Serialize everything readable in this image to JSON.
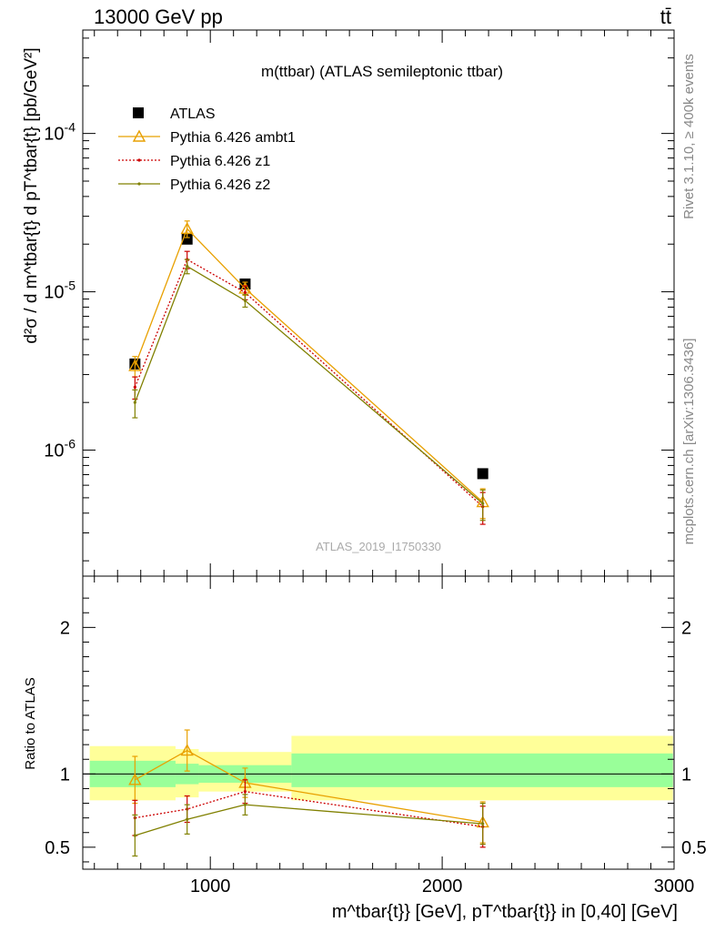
{
  "header": {
    "process": "13000 GeV pp",
    "final_state": "tt̄"
  },
  "side": {
    "rivet": "Rivet 3.1.10, ≥ 400k events",
    "source": "mcplots.cern.ch [arXiv:1306.3436]"
  },
  "chart_data": [
    {
      "type": "line",
      "panel": "main",
      "title": "m(ttbar) (ATLAS semileptonic ttbar)",
      "analysis": "ATLAS_2019_I1750330",
      "ylabel": "d²σ / d m^tbar{t} d pT^tbar{t} [pb/GeV²]",
      "yscale": "log",
      "ylim": [
        1.6e-07,
        0.00045
      ],
      "xlim": [
        450,
        3000
      ],
      "ytick_labels": [
        "10^-6",
        "10^-5",
        "10^-4"
      ],
      "legend_placement": "top-left",
      "series": [
        {
          "name": "ATLAS",
          "marker": "square",
          "color": "#000000",
          "x": [
            675,
            900,
            1150,
            2175
          ],
          "values": [
            3.5e-06,
            2.15e-05,
            1.12e-05,
            7.1e-07
          ],
          "err": [
            0,
            0,
            0,
            0
          ]
        },
        {
          "name": "Pythia 6.426 ambt1",
          "marker": "triangle",
          "color": "#e8a000",
          "x": [
            675,
            900,
            1150,
            2175
          ],
          "values": [
            3.4e-06,
            2.5e-05,
            1.05e-05,
            4.7e-07
          ],
          "err": [
            5e-07,
            3e-06,
            1e-06,
            1e-07
          ]
        },
        {
          "name": "Pythia 6.426 z1",
          "marker": "dot",
          "dash": "dotted",
          "color": "#cc0000",
          "x": [
            675,
            900,
            1150,
            2175
          ],
          "values": [
            2.5e-06,
            1.6e-05,
            9.9e-06,
            4.4e-07
          ],
          "err": [
            4e-07,
            2e-06,
            1e-06,
            1e-07
          ]
        },
        {
          "name": "Pythia 6.426 z2",
          "marker": "dot",
          "color": "#808000",
          "x": [
            675,
            900,
            1150,
            2175
          ],
          "values": [
            2e-06,
            1.45e-05,
            8.8e-06,
            4.6e-07
          ],
          "err": [
            4e-07,
            1.5e-06,
            8e-07,
            1e-07
          ]
        }
      ]
    },
    {
      "type": "line",
      "panel": "ratio",
      "ylabel": "Ratio to ATLAS",
      "xlabel": "m^tbar{t}} [GeV], pT^tbar{t}} in [0,40] [GeV]",
      "ylim": [
        0.35,
        2.35
      ],
      "xlim": [
        450,
        3000
      ],
      "ytick_labels": [
        "0.5",
        "1",
        "2"
      ],
      "xtick_labels": [
        "1000",
        "2000",
        "3000"
      ],
      "bands": [
        {
          "x0": 480,
          "x1": 850,
          "lo1": 0.91,
          "hi1": 1.09,
          "lo2": 0.82,
          "hi2": 1.19
        },
        {
          "x0": 850,
          "x1": 950,
          "lo1": 0.93,
          "hi1": 1.07,
          "lo2": 0.84,
          "hi2": 1.17
        },
        {
          "x0": 950,
          "x1": 1350,
          "lo1": 0.94,
          "hi1": 1.06,
          "lo2": 0.88,
          "hi2": 1.15
        },
        {
          "x0": 1350,
          "x1": 2995,
          "lo1": 0.91,
          "hi1": 1.14,
          "lo2": 0.82,
          "hi2": 1.26
        }
      ],
      "series": [
        {
          "name": "Pythia 6.426 ambt1",
          "color": "#e8a000",
          "marker": "triangle",
          "x": [
            675,
            900,
            1150,
            2175
          ],
          "values": [
            0.96,
            1.16,
            0.94,
            0.67
          ],
          "err": [
            0.16,
            0.14,
            0.1,
            0.14
          ]
        },
        {
          "name": "Pythia 6.426 z1",
          "color": "#cc0000",
          "marker": "dot",
          "dash": "dotted",
          "x": [
            675,
            900,
            1150,
            2175
          ],
          "values": [
            0.7,
            0.76,
            0.88,
            0.64
          ],
          "err": [
            0.12,
            0.09,
            0.08,
            0.14
          ]
        },
        {
          "name": "Pythia 6.426 z2",
          "color": "#808000",
          "marker": "dot",
          "x": [
            675,
            900,
            1150,
            2175
          ],
          "values": [
            0.58,
            0.69,
            0.79,
            0.66
          ],
          "err": [
            0.14,
            0.1,
            0.07,
            0.14
          ]
        }
      ]
    }
  ]
}
